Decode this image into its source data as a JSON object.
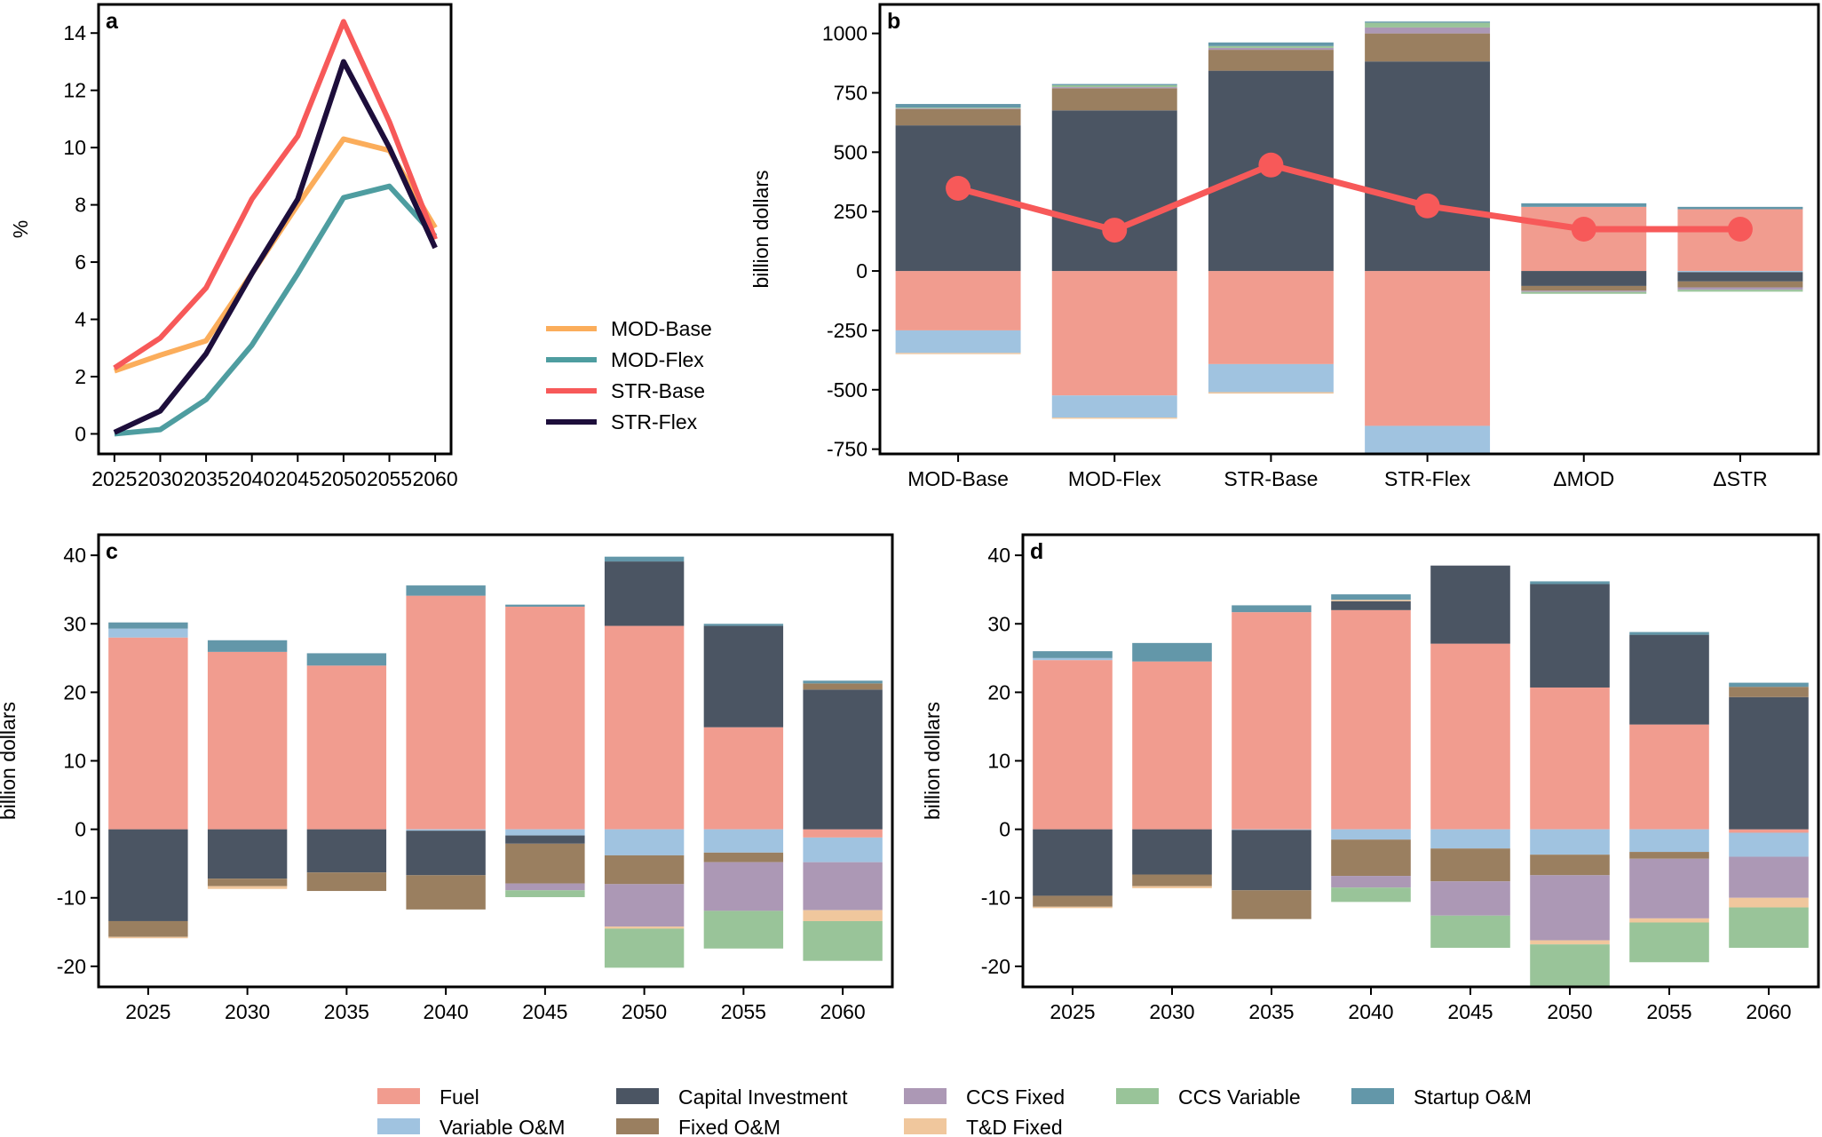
{
  "components": [
    {
      "name": "Fuel",
      "color": "#F19C8F"
    },
    {
      "name": "Variable O&M",
      "color": "#A0C3E0"
    },
    {
      "name": "Capital Investment",
      "color": "#4B5563"
    },
    {
      "name": "Fixed O&M",
      "color": "#9A7F60"
    },
    {
      "name": "CCS Fixed",
      "color": "#AC98B5"
    },
    {
      "name": "T&D Fixed",
      "color": "#F0C79D"
    },
    {
      "name": "CCS Variable",
      "color": "#99C499"
    },
    {
      "name": "Startup O&M",
      "color": "#6397A9"
    }
  ],
  "legend_order": [
    "Fuel",
    "Capital Investment",
    "CCS Fixed",
    "CCS Variable",
    "Startup O&M",
    "Variable O&M",
    "Fixed O&M",
    "T&D Fixed"
  ],
  "chart_data": [
    {
      "panel": "a",
      "type": "line",
      "ylabel": "%",
      "xlabel": "",
      "x": [
        2025,
        2030,
        2035,
        2040,
        2045,
        2050,
        2055,
        2060
      ],
      "ylim": [
        -0.7,
        15
      ],
      "yticks": [
        0,
        2,
        4,
        6,
        8,
        10,
        12,
        14
      ],
      "grid": false,
      "legend": "bottom-right",
      "series": [
        {
          "name": "MOD-Base",
          "color": "#FBAD5B",
          "values": [
            2.2,
            2.75,
            3.25,
            5.6,
            8.0,
            10.3,
            9.9,
            7.2
          ]
        },
        {
          "name": "MOD-Flex",
          "color": "#4E9DA0",
          "values": [
            0.0,
            0.15,
            1.2,
            3.1,
            5.6,
            8.25,
            8.65,
            6.9
          ]
        },
        {
          "name": "STR-Base",
          "color": "#F75959",
          "values": [
            2.3,
            3.35,
            5.1,
            8.2,
            10.4,
            14.4,
            10.9,
            6.8
          ]
        },
        {
          "name": "STR-Flex",
          "color": "#1D0E3B",
          "values": [
            0.05,
            0.8,
            2.8,
            5.6,
            8.2,
            13.0,
            10.0,
            6.5
          ]
        }
      ]
    },
    {
      "panel": "b",
      "type": "bar",
      "stacked": true,
      "ylabel": "billion dollars",
      "categories": [
        "MOD-Base",
        "MOD-Flex",
        "STR-Base",
        "STR-Flex",
        "ΔMOD",
        "ΔSTR"
      ],
      "ylim": [
        -770,
        1122
      ],
      "yticks": [
        -750,
        -500,
        -250,
        0,
        250,
        500,
        750,
        1000
      ],
      "grid": false,
      "stacks": {
        "Fuel": [
          -250,
          -524,
          -392,
          -652,
          270,
          260
        ],
        "Variable O&M": [
          -95,
          -93,
          -118,
          -118,
          0,
          -5
        ],
        "Capital Investment": [
          613,
          676,
          843,
          882,
          -63,
          -39
        ],
        "Fixed O&M": [
          69,
          93,
          88,
          118,
          -20,
          -25
        ],
        "CCS Fixed": [
          3,
          5,
          8,
          25,
          -5,
          -10
        ],
        "T&D Fixed": [
          -5,
          -5,
          -6,
          0,
          0,
          0
        ],
        "CCS Variable": [
          3,
          8,
          8,
          20,
          -8,
          -8
        ],
        "Startup O&M": [
          15,
          5,
          15,
          5,
          15,
          10
        ]
      },
      "line": {
        "color": "#F75959",
        "values": [
          348,
          172,
          446,
          274,
          176,
          176
        ]
      }
    },
    {
      "panel": "c",
      "type": "bar",
      "stacked": true,
      "ylabel": "billion dollars",
      "categories": [
        "2025",
        "2030",
        "2035",
        "2040",
        "2045",
        "2050",
        "2055",
        "2060"
      ],
      "ylim": [
        -23,
        43
      ],
      "yticks": [
        -20,
        -10,
        0,
        10,
        20,
        30,
        40
      ],
      "grid": false,
      "stacks": {
        "Fuel": [
          28.0,
          25.9,
          23.9,
          34.1,
          32.5,
          29.7,
          14.9,
          -1.2
        ],
        "Variable O&M": [
          1.3,
          0,
          0,
          -0.2,
          -0.9,
          -3.8,
          -3.4,
          -3.6
        ],
        "Capital Investment": [
          -13.4,
          -7.2,
          -6.3,
          -6.5,
          -1.2,
          9.4,
          14.8,
          20.4
        ],
        "Fixed O&M": [
          -2.3,
          -1.1,
          -2.7,
          -5.0,
          -5.8,
          -4.2,
          -1.4,
          0.9
        ],
        "CCS Fixed": [
          0,
          0,
          0,
          0,
          -1.0,
          -6.2,
          -7.1,
          -7.0
        ],
        "T&D Fixed": [
          -0.2,
          -0.4,
          0,
          0,
          0,
          -0.3,
          0,
          -1.6
        ],
        "CCS Variable": [
          0,
          0,
          0,
          0,
          -1.0,
          -5.7,
          -5.5,
          -5.8
        ],
        "Startup O&M": [
          0.9,
          1.7,
          1.8,
          1.5,
          0.3,
          0.7,
          0.3,
          0.4
        ]
      }
    },
    {
      "panel": "d",
      "type": "bar",
      "stacked": true,
      "ylabel": "billion dollars",
      "categories": [
        "2025",
        "2030",
        "2035",
        "2040",
        "2045",
        "2050",
        "2055",
        "2060"
      ],
      "ylim": [
        -23,
        43
      ],
      "yticks": [
        -20,
        -10,
        0,
        10,
        20,
        30,
        40
      ],
      "grid": false,
      "stacks": {
        "Fuel": [
          24.7,
          24.5,
          31.7,
          32.0,
          27.1,
          20.7,
          15.3,
          -0.5
        ],
        "Variable O&M": [
          0.3,
          0,
          -0.1,
          -1.5,
          -2.8,
          -3.7,
          -3.3,
          -3.5
        ],
        "Capital Investment": [
          -9.7,
          -6.6,
          -8.8,
          1.3,
          11.4,
          15.1,
          13.1,
          19.3
        ],
        "Fixed O&M": [
          -1.6,
          -1.7,
          -4.2,
          -5.3,
          -4.8,
          -3.0,
          -1.0,
          1.5
        ],
        "CCS Fixed": [
          0,
          0,
          0,
          -1.7,
          -5.0,
          -9.5,
          -8.7,
          -6.0
        ],
        "T&D Fixed": [
          -0.2,
          -0.3,
          0,
          0.2,
          0,
          -0.6,
          -0.6,
          -1.4
        ],
        "CCS Variable": [
          0,
          0,
          0,
          -2.1,
          -4.7,
          -6.2,
          -5.8,
          -5.9
        ],
        "Startup O&M": [
          1.0,
          2.7,
          1.0,
          0.8,
          0,
          0.4,
          0.4,
          0.6
        ]
      }
    }
  ]
}
